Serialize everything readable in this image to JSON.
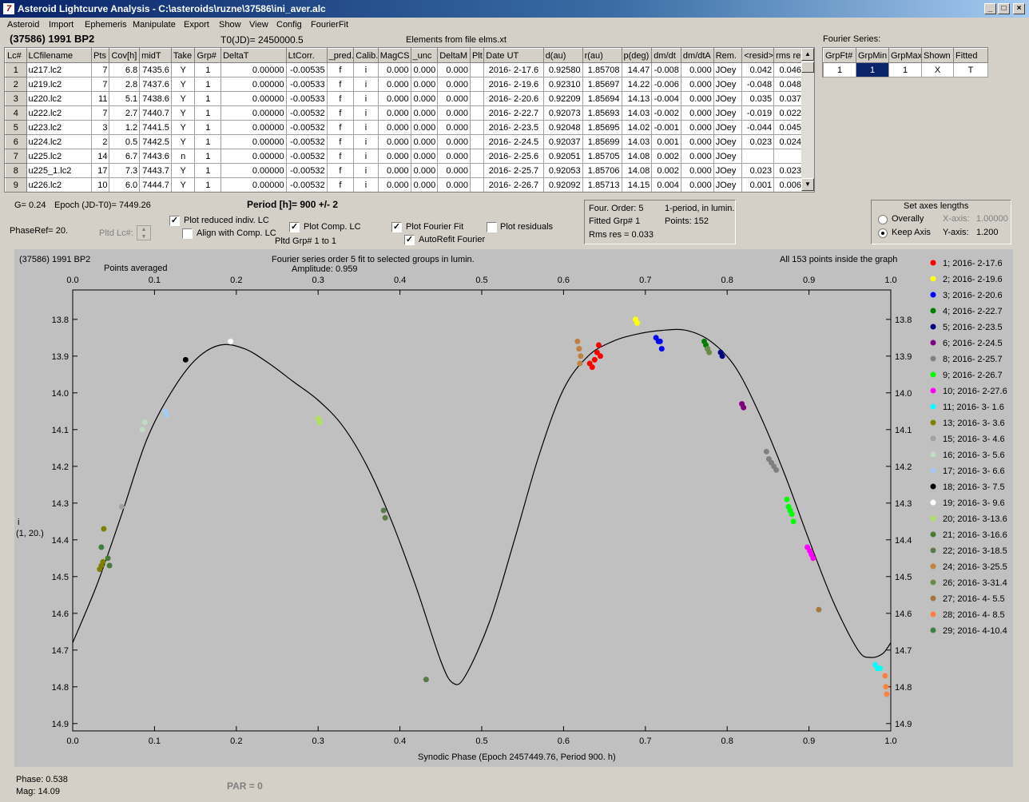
{
  "window": {
    "title": "Asteroid Lightcurve Analysis - C:\\asteroids\\ruzne\\37586\\ini_aver.alc",
    "min": "_",
    "max": "□",
    "close": "×"
  },
  "menu": [
    "Asteroid",
    "Import",
    "Ephemeris",
    "Manipulate",
    "Export",
    "Show",
    "View",
    "Config",
    "FourierFit"
  ],
  "header": {
    "asteroid": "(37586) 1991 BP2",
    "t0": "T0(JD)= 2450000.5",
    "elements": "Elements from file elms.xt"
  },
  "lc_table": {
    "columns": [
      "Lc#",
      "LCfilename",
      "Pts",
      "Cov[h]",
      "midT",
      "Take",
      "Grp#",
      "DeltaT",
      "LtCorr.",
      "_pred.",
      "Calib.",
      "MagCS",
      "_unc",
      "DeltaM",
      "Plt",
      "Date UT",
      "d(au)",
      "r(au)",
      "p(deg)",
      "dm/dt",
      "dm/dtA",
      "Rem.",
      "<resid>",
      "rms res"
    ],
    "rows": [
      [
        "1",
        "u217.lc2",
        "7",
        "6.8",
        "7435.6",
        "Y",
        "1",
        "0.00000",
        "-0.00535",
        "f",
        "i",
        "0.000",
        "0.000",
        "0.000",
        "",
        "2016- 2-17.6",
        "0.92580",
        "1.85708",
        "14.47",
        "-0.008",
        "0.000",
        "JOey",
        "0.042",
        "0.046"
      ],
      [
        "2",
        "u219.lc2",
        "7",
        "2.8",
        "7437.6",
        "Y",
        "1",
        "0.00000",
        "-0.00533",
        "f",
        "i",
        "0.000",
        "0.000",
        "0.000",
        "",
        "2016- 2-19.6",
        "0.92310",
        "1.85697",
        "14.22",
        "-0.006",
        "0.000",
        "JOey",
        "-0.048",
        "0.048"
      ],
      [
        "3",
        "u220.lc2",
        "11",
        "5.1",
        "7438.6",
        "Y",
        "1",
        "0.00000",
        "-0.00533",
        "f",
        "i",
        "0.000",
        "0.000",
        "0.000",
        "",
        "2016- 2-20.6",
        "0.92209",
        "1.85694",
        "14.13",
        "-0.004",
        "0.000",
        "JOey",
        "0.035",
        "0.037"
      ],
      [
        "4",
        "u222.lc2",
        "7",
        "2.7",
        "7440.7",
        "Y",
        "1",
        "0.00000",
        "-0.00532",
        "f",
        "i",
        "0.000",
        "0.000",
        "0.000",
        "",
        "2016- 2-22.7",
        "0.92073",
        "1.85693",
        "14.03",
        "-0.002",
        "0.000",
        "JOey",
        "-0.019",
        "0.022"
      ],
      [
        "5",
        "u223.lc2",
        "3",
        "1.2",
        "7441.5",
        "Y",
        "1",
        "0.00000",
        "-0.00532",
        "f",
        "i",
        "0.000",
        "0.000",
        "0.000",
        "",
        "2016- 2-23.5",
        "0.92048",
        "1.85695",
        "14.02",
        "-0.001",
        "0.000",
        "JOey",
        "-0.044",
        "0.045"
      ],
      [
        "6",
        "u224.lc2",
        "2",
        "0.5",
        "7442.5",
        "Y",
        "1",
        "0.00000",
        "-0.00532",
        "f",
        "i",
        "0.000",
        "0.000",
        "0.000",
        "",
        "2016- 2-24.5",
        "0.92037",
        "1.85699",
        "14.03",
        "0.001",
        "0.000",
        "JOey",
        "0.023",
        "0.024"
      ],
      [
        "7",
        "u225.lc2",
        "14",
        "6.7",
        "7443.6",
        "n",
        "1",
        "0.00000",
        "-0.00532",
        "f",
        "i",
        "0.000",
        "0.000",
        "0.000",
        "",
        "2016- 2-25.6",
        "0.92051",
        "1.85705",
        "14.08",
        "0.002",
        "0.000",
        "JOey",
        "",
        ""
      ],
      [
        "8",
        "u225_1.lc2",
        "17",
        "7.3",
        "7443.7",
        "Y",
        "1",
        "0.00000",
        "-0.00532",
        "f",
        "i",
        "0.000",
        "0.000",
        "0.000",
        "",
        "2016- 2-25.7",
        "0.92053",
        "1.85706",
        "14.08",
        "0.002",
        "0.000",
        "JOey",
        "0.023",
        "0.023"
      ],
      [
        "9",
        "u226.lc2",
        "10",
        "6.0",
        "7444.7",
        "Y",
        "1",
        "0.00000",
        "-0.00532",
        "f",
        "i",
        "0.000",
        "0.000",
        "0.000",
        "",
        "2016- 2-26.7",
        "0.92092",
        "1.85713",
        "14.15",
        "0.004",
        "0.000",
        "JOey",
        "0.001",
        "0.006"
      ]
    ]
  },
  "fourier_table": {
    "title": "Fourier Series:",
    "columns": [
      "GrpFt#",
      "GrpMin",
      "GrpMax",
      "Shown",
      "Fitted"
    ],
    "row": [
      "1",
      "1",
      "1",
      "X",
      "T"
    ]
  },
  "controls": {
    "g": "G= 0.24",
    "epoch": "Epoch (JD-T0)= 7449.26",
    "period": "Period [h]= 900 +/- 2",
    "phaseref": "PhaseRef= 20.",
    "pltd_lc": "Pltd Lc#:",
    "plot_reduced": "Plot reduced indiv. LC",
    "align": "Align with Comp. LC",
    "plot_comp": "Plot Comp. LC",
    "pltd_grp": "Pltd Grp#  1   to   1",
    "plot_fourier": "Plot Fourier Fit",
    "autorefit": "AutoRefit Fourier",
    "plot_residuals": "Plot residuals",
    "check_mark": "✓",
    "plot_reduced_checked": true,
    "align_checked": false,
    "plot_comp_checked": true,
    "plot_fourier_checked": true,
    "autorefit_checked": true,
    "plot_residuals_checked": false
  },
  "fit_info": {
    "order": "Four. Order:  5",
    "mode": "1-period, in lumin.",
    "fitted": "Fitted Grp# 1",
    "points": "Points: 152",
    "rms": "Rms res     = 0.033"
  },
  "axes_panel": {
    "title": "Set axes lengths",
    "overally": "Overally",
    "keep": "Keep Axis",
    "xaxis_label": "X-axis:",
    "xaxis_val": "1.00000",
    "yaxis_label": "Y-axis:",
    "yaxis_val": "1.200",
    "selected": "keep"
  },
  "plot": {
    "name": "(37586) 1991 BP2",
    "points_averaged": "Points averaged",
    "fit_desc": "Fourier series order 5 fit to selected groups in lumin.",
    "amplitude": "Amplitude: 0.959",
    "inside": "All 153 points inside the graph",
    "ylabel1": "i",
    "ylabel2": "(1, 20.)",
    "xlabel": "Synodic Phase (Epoch 2457449.76, Period 900. h)"
  },
  "status": {
    "phase": "Phase:  0.538",
    "mag": "Mag:    14.09",
    "par": "PAR = 0"
  },
  "chart_data": {
    "type": "scatter",
    "x_range": [
      0,
      1
    ],
    "y_range": [
      13.72,
      14.92
    ],
    "y_inverted": true,
    "x_ticks": [
      "0.0",
      "0.1",
      "0.2",
      "0.3",
      "0.4",
      "0.5",
      "0.6",
      "0.7",
      "0.8",
      "0.9",
      "1.0"
    ],
    "y_ticks": [
      "13.8",
      "13.9",
      "14.0",
      "14.1",
      "14.2",
      "14.3",
      "14.4",
      "14.5",
      "14.6",
      "14.7",
      "14.8",
      "14.9"
    ],
    "fit_curve": [
      [
        0,
        14.68
      ],
      [
        0.03,
        14.52
      ],
      [
        0.06,
        14.33
      ],
      [
        0.09,
        14.13
      ],
      [
        0.12,
        14.0
      ],
      [
        0.15,
        13.91
      ],
      [
        0.18,
        13.87
      ],
      [
        0.21,
        13.88
      ],
      [
        0.24,
        13.92
      ],
      [
        0.27,
        13.97
      ],
      [
        0.3,
        14.02
      ],
      [
        0.33,
        14.09
      ],
      [
        0.36,
        14.2
      ],
      [
        0.39,
        14.35
      ],
      [
        0.42,
        14.53
      ],
      [
        0.45,
        14.73
      ],
      [
        0.465,
        14.79
      ],
      [
        0.48,
        14.77
      ],
      [
        0.51,
        14.62
      ],
      [
        0.54,
        14.4
      ],
      [
        0.57,
        14.17
      ],
      [
        0.6,
        13.99
      ],
      [
        0.63,
        13.9
      ],
      [
        0.66,
        13.86
      ],
      [
        0.69,
        13.84
      ],
      [
        0.72,
        13.83
      ],
      [
        0.75,
        13.83
      ],
      [
        0.78,
        13.86
      ],
      [
        0.81,
        13.93
      ],
      [
        0.84,
        14.06
      ],
      [
        0.87,
        14.22
      ],
      [
        0.9,
        14.4
      ],
      [
        0.93,
        14.57
      ],
      [
        0.96,
        14.7
      ],
      [
        0.975,
        14.72
      ],
      [
        0.99,
        14.71
      ],
      [
        1.0,
        14.68
      ]
    ],
    "series": [
      {
        "name": "1; 2016- 2-17.6",
        "color": "#ff0000",
        "points": [
          [
            0.632,
            13.92
          ],
          [
            0.635,
            13.93
          ],
          [
            0.638,
            13.91
          ],
          [
            0.641,
            13.89
          ],
          [
            0.643,
            13.87
          ],
          [
            0.645,
            13.9
          ]
        ]
      },
      {
        "name": "2; 2016- 2-19.6",
        "color": "#ffff00",
        "points": [
          [
            0.688,
            13.8
          ],
          [
            0.69,
            13.81
          ]
        ]
      },
      {
        "name": "3; 2016- 2-20.6",
        "color": "#0000ff",
        "points": [
          [
            0.713,
            13.85
          ],
          [
            0.716,
            13.86
          ],
          [
            0.718,
            13.86
          ],
          [
            0.72,
            13.88
          ]
        ]
      },
      {
        "name": "4; 2016- 2-22.7",
        "color": "#008000",
        "points": [
          [
            0.772,
            13.86
          ],
          [
            0.774,
            13.87
          ],
          [
            0.776,
            13.88
          ]
        ]
      },
      {
        "name": "5; 2016- 2-23.5",
        "color": "#000080",
        "points": [
          [
            0.792,
            13.89
          ],
          [
            0.794,
            13.9
          ]
        ]
      },
      {
        "name": "6; 2016- 2-24.5",
        "color": "#800080",
        "points": [
          [
            0.818,
            14.03
          ],
          [
            0.82,
            14.04
          ]
        ]
      },
      {
        "name": "8; 2016- 2-25.7",
        "color": "#808080",
        "points": [
          [
            0.848,
            14.16
          ],
          [
            0.851,
            14.18
          ],
          [
            0.854,
            14.19
          ],
          [
            0.857,
            14.2
          ],
          [
            0.86,
            14.21
          ]
        ]
      },
      {
        "name": "9; 2016- 2-26.7",
        "color": "#00ff00",
        "points": [
          [
            0.873,
            14.29
          ],
          [
            0.875,
            14.31
          ],
          [
            0.877,
            14.32
          ],
          [
            0.879,
            14.33
          ],
          [
            0.881,
            14.35
          ]
        ]
      },
      {
        "name": "10; 2016- 2-27.6",
        "color": "#ff00ff",
        "points": [
          [
            0.898,
            14.42
          ],
          [
            0.901,
            14.43
          ],
          [
            0.903,
            14.44
          ],
          [
            0.905,
            14.45
          ]
        ]
      },
      {
        "name": "11; 2016- 3- 1.6",
        "color": "#00ffff",
        "points": [
          [
            0.981,
            14.74
          ],
          [
            0.984,
            14.75
          ],
          [
            0.987,
            14.75
          ]
        ]
      },
      {
        "name": "13; 2016- 3- 3.6",
        "color": "#808000",
        "points": [
          [
            0.033,
            14.48
          ],
          [
            0.035,
            14.47
          ],
          [
            0.037,
            14.46
          ],
          [
            0.038,
            14.37
          ]
        ]
      },
      {
        "name": "15; 2016- 3- 4.6",
        "color": "#a0a0a0",
        "points": [
          [
            0.06,
            14.31
          ]
        ]
      },
      {
        "name": "16; 2016- 3- 5.6",
        "color": "#c0dcc0",
        "points": [
          [
            0.085,
            14.1
          ],
          [
            0.088,
            14.08
          ]
        ]
      },
      {
        "name": "17; 2016- 3- 6.6",
        "color": "#a6caf0",
        "points": [
          [
            0.113,
            14.05
          ],
          [
            0.115,
            14.06
          ]
        ]
      },
      {
        "name": "18; 2016- 3- 7.5",
        "color": "#000000",
        "points": [
          [
            0.138,
            13.91
          ]
        ]
      },
      {
        "name": "19; 2016- 3- 9.6",
        "color": "#ffffff",
        "points": [
          [
            0.193,
            13.86
          ]
        ]
      },
      {
        "name": "20; 2016- 3-13.6",
        "color": "#b0e060",
        "points": [
          [
            0.3,
            14.07
          ],
          [
            0.302,
            14.08
          ]
        ]
      },
      {
        "name": "21; 2016- 3-16.6",
        "color": "#4a7a3a",
        "points": [
          [
            0.043,
            14.45
          ],
          [
            0.045,
            14.47
          ]
        ]
      },
      {
        "name": "22; 2016- 3-18.5",
        "color": "#5a7a4a",
        "points": [
          [
            0.38,
            14.32
          ],
          [
            0.382,
            14.34
          ],
          [
            0.432,
            14.78
          ]
        ]
      },
      {
        "name": "24; 2016- 3-25.5",
        "color": "#c08040",
        "points": [
          [
            0.617,
            13.86
          ],
          [
            0.619,
            13.88
          ],
          [
            0.621,
            13.9
          ],
          [
            0.62,
            13.92
          ]
        ]
      },
      {
        "name": "26; 2016- 3-31.4",
        "color": "#6a8a4a",
        "points": [
          [
            0.776,
            13.88
          ],
          [
            0.778,
            13.89
          ]
        ]
      },
      {
        "name": "27; 2016- 4- 5.5",
        "color": "#a07840",
        "points": [
          [
            0.912,
            14.59
          ]
        ]
      },
      {
        "name": "28; 2016- 4- 8.5",
        "color": "#ff8040",
        "points": [
          [
            0.993,
            14.77
          ],
          [
            0.994,
            14.8
          ],
          [
            0.995,
            14.82
          ]
        ]
      },
      {
        "name": "29; 2016- 4-10.4",
        "color": "#408040",
        "points": [
          [
            0.035,
            14.42
          ]
        ]
      }
    ]
  }
}
